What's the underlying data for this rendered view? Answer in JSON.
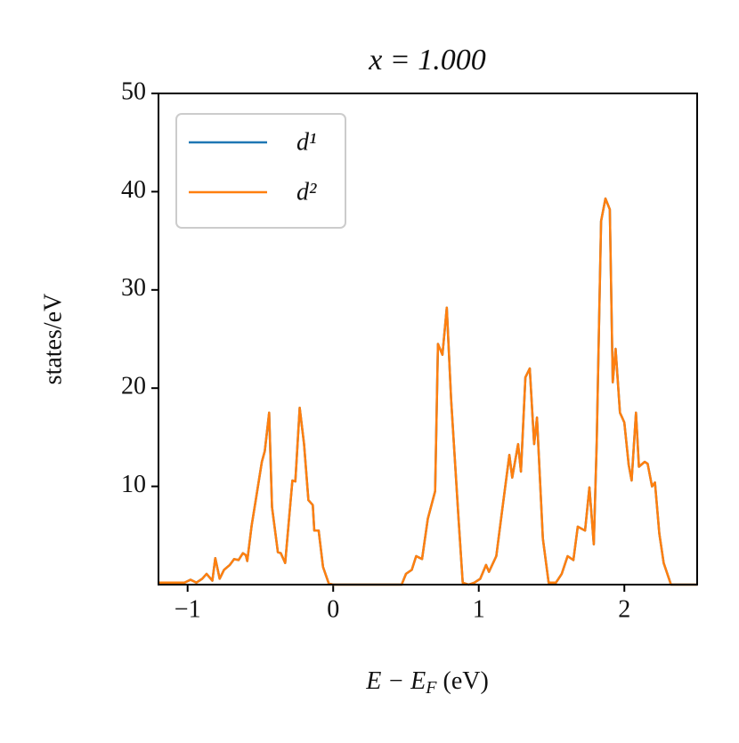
{
  "chart_data": {
    "type": "line",
    "title": "x = 1.000",
    "xlabel": "E − E_F (eV)",
    "ylabel": "states/eV",
    "x": [
      -1.2,
      -1.02,
      -0.98,
      -0.94,
      -0.9,
      -0.87,
      -0.83,
      -0.81,
      -0.78,
      -0.75,
      -0.71,
      -0.68,
      -0.65,
      -0.62,
      -0.6,
      -0.59,
      -0.56,
      -0.53,
      -0.49,
      -0.47,
      -0.44,
      -0.42,
      -0.38,
      -0.36,
      -0.33,
      -0.28,
      -0.26,
      -0.23,
      -0.2,
      -0.17,
      -0.14,
      -0.13,
      -0.1,
      -0.07,
      -0.03,
      0,
      0.47,
      0.5,
      0.54,
      0.57,
      0.61,
      0.65,
      0.7,
      0.72,
      0.75,
      0.78,
      0.81,
      0.86,
      0.89,
      0.93,
      0.97,
      1.01,
      1.05,
      1.07,
      1.12,
      1.16,
      1.21,
      1.23,
      1.27,
      1.29,
      1.32,
      1.35,
      1.38,
      1.4,
      1.44,
      1.48,
      1.53,
      1.57,
      1.61,
      1.65,
      1.68,
      1.73,
      1.76,
      1.79,
      1.81,
      1.84,
      1.87,
      1.9,
      1.92,
      1.94,
      1.97,
      2,
      2.03,
      2.05,
      2.08,
      2.1,
      2.14,
      2.16,
      2.19,
      2.21,
      2.24,
      2.27,
      2.32,
      2.5
    ],
    "series": [
      {
        "name": "d¹",
        "color": "#1f77b4",
        "values": [
          0.2,
          0.2,
          0.5,
          0.2,
          0.6,
          1.1,
          0.4,
          2.7,
          0.6,
          1.5,
          2,
          2.6,
          2.5,
          3.2,
          3,
          2.4,
          6,
          8.8,
          12.5,
          13.6,
          17.5,
          7.9,
          3.3,
          3.2,
          2.2,
          10.6,
          10.5,
          18,
          14.3,
          8.6,
          8.1,
          5.5,
          5.5,
          1.8,
          0.1,
          0,
          0,
          1.1,
          1.5,
          2.9,
          2.6,
          6.7,
          9.5,
          24.5,
          23.4,
          28.2,
          18.8,
          7,
          0.2,
          0,
          0.2,
          0.6,
          2,
          1.3,
          2.9,
          7.5,
          13.2,
          10.9,
          14.3,
          11.5,
          21.1,
          22,
          14.3,
          17,
          4.7,
          0.2,
          0.2,
          1.1,
          2.9,
          2.5,
          5.9,
          5.5,
          9.9,
          4.1,
          14.5,
          37,
          39.3,
          38.2,
          20.6,
          24,
          17.5,
          16.5,
          12.2,
          10.6,
          17.5,
          12,
          12.5,
          12.3,
          10,
          10.4,
          5.2,
          2.2,
          0,
          0
        ]
      },
      {
        "name": "d²",
        "color": "#ff7f0e",
        "values": [
          0.2,
          0.2,
          0.5,
          0.2,
          0.6,
          1.1,
          0.4,
          2.7,
          0.6,
          1.5,
          2,
          2.6,
          2.5,
          3.2,
          3,
          2.4,
          6,
          8.8,
          12.5,
          13.6,
          17.5,
          7.9,
          3.3,
          3.2,
          2.2,
          10.6,
          10.5,
          18,
          14.3,
          8.6,
          8.1,
          5.5,
          5.5,
          1.8,
          0.1,
          0,
          0,
          1.1,
          1.5,
          2.9,
          2.6,
          6.7,
          9.5,
          24.5,
          23.4,
          28.2,
          18.8,
          7,
          0.2,
          0,
          0.2,
          0.6,
          2,
          1.3,
          2.9,
          7.5,
          13.2,
          10.9,
          14.3,
          11.5,
          21.1,
          22,
          14.3,
          17,
          4.7,
          0.2,
          0.2,
          1.1,
          2.9,
          2.5,
          5.9,
          5.5,
          9.9,
          4.1,
          14.5,
          37,
          39.3,
          38.2,
          20.6,
          24,
          17.5,
          16.5,
          12.2,
          10.6,
          17.5,
          12,
          12.5,
          12.3,
          10,
          10.4,
          5.2,
          2.2,
          0,
          0
        ]
      }
    ],
    "xlim": [
      -1.2,
      2.5
    ],
    "ylim": [
      0,
      50
    ],
    "xticks": [
      {
        "value": -1,
        "label": "−1"
      },
      0,
      1,
      2
    ],
    "yticks": [
      10,
      20,
      30,
      40,
      50
    ],
    "legend": "upper left",
    "grid": false
  }
}
